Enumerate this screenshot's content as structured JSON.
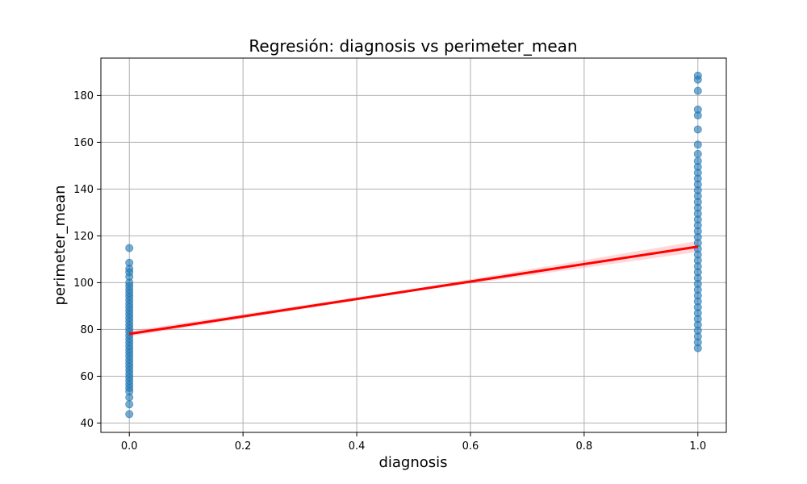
{
  "chart_data": {
    "type": "scatter",
    "title": "Regresión: diagnosis vs perimeter_mean",
    "xlabel": "diagnosis",
    "ylabel": "perimeter_mean",
    "xlim": [
      -0.05,
      1.05
    ],
    "ylim": [
      36,
      196
    ],
    "xticks": [
      0.0,
      0.2,
      0.4,
      0.6,
      0.8,
      1.0
    ],
    "xtick_labels": [
      "0.0",
      "0.2",
      "0.4",
      "0.6",
      "0.8",
      "1.0"
    ],
    "yticks": [
      40,
      60,
      80,
      100,
      120,
      140,
      160,
      180
    ],
    "ytick_labels": [
      "40",
      "60",
      "80",
      "100",
      "120",
      "140",
      "160",
      "180"
    ],
    "grid": true,
    "colors": {
      "points": "#1f77b4",
      "line": "#ff0000",
      "band": "#ff0000"
    },
    "series": [
      {
        "kind": "points",
        "points": [
          [
            0,
            43.8
          ],
          [
            0,
            48.0
          ],
          [
            0,
            51.0
          ],
          [
            0,
            53.5
          ],
          [
            0,
            55.0
          ],
          [
            0,
            56.5
          ],
          [
            0,
            58.0
          ],
          [
            0,
            59.5
          ],
          [
            0,
            61.0
          ],
          [
            0,
            62.5
          ],
          [
            0,
            64.0
          ],
          [
            0,
            65.5
          ],
          [
            0,
            67.0
          ],
          [
            0,
            68.5
          ],
          [
            0,
            70.0
          ],
          [
            0,
            71.5
          ],
          [
            0,
            73.0
          ],
          [
            0,
            74.5
          ],
          [
            0,
            76.0
          ],
          [
            0,
            77.5
          ],
          [
            0,
            79.0
          ],
          [
            0,
            80.5
          ],
          [
            0,
            82.0
          ],
          [
            0,
            83.5
          ],
          [
            0,
            85.0
          ],
          [
            0,
            86.5
          ],
          [
            0,
            88.0
          ],
          [
            0,
            89.5
          ],
          [
            0,
            91.0
          ],
          [
            0,
            92.5
          ],
          [
            0,
            94.0
          ],
          [
            0,
            95.5
          ],
          [
            0,
            97.0
          ],
          [
            0,
            98.5
          ],
          [
            0,
            100.0
          ],
          [
            0,
            102.5
          ],
          [
            0,
            104.5
          ],
          [
            0,
            106.0
          ],
          [
            0,
            108.5
          ],
          [
            0,
            114.8
          ],
          [
            1,
            72.0
          ],
          [
            1,
            74.5
          ],
          [
            1,
            77.0
          ],
          [
            1,
            79.5
          ],
          [
            1,
            82.0
          ],
          [
            1,
            84.5
          ],
          [
            1,
            87.0
          ],
          [
            1,
            89.5
          ],
          [
            1,
            92.0
          ],
          [
            1,
            94.5
          ],
          [
            1,
            97.0
          ],
          [
            1,
            99.5
          ],
          [
            1,
            102.0
          ],
          [
            1,
            104.5
          ],
          [
            1,
            107.0
          ],
          [
            1,
            109.5
          ],
          [
            1,
            112.0
          ],
          [
            1,
            114.5
          ],
          [
            1,
            117.0
          ],
          [
            1,
            119.5
          ],
          [
            1,
            122.0
          ],
          [
            1,
            124.5
          ],
          [
            1,
            127.0
          ],
          [
            1,
            129.5
          ],
          [
            1,
            132.0
          ],
          [
            1,
            134.5
          ],
          [
            1,
            137.0
          ],
          [
            1,
            139.5
          ],
          [
            1,
            142.0
          ],
          [
            1,
            144.5
          ],
          [
            1,
            147.0
          ],
          [
            1,
            149.5
          ],
          [
            1,
            152.0
          ],
          [
            1,
            155.0
          ],
          [
            1,
            159.0
          ],
          [
            1,
            165.5
          ],
          [
            1,
            171.5
          ],
          [
            1,
            174.0
          ],
          [
            1,
            182.0
          ],
          [
            1,
            186.8
          ],
          [
            1,
            188.5
          ]
        ]
      },
      {
        "kind": "regression",
        "line": [
          [
            0,
            78.1
          ],
          [
            1,
            115.4
          ]
        ],
        "ci_lower": [
          [
            0,
            77.0
          ],
          [
            0.5,
            96.2
          ],
          [
            1,
            113.1
          ]
        ],
        "ci_upper": [
          [
            0,
            79.3
          ],
          [
            0.5,
            97.4
          ],
          [
            1,
            117.8
          ]
        ]
      }
    ]
  }
}
